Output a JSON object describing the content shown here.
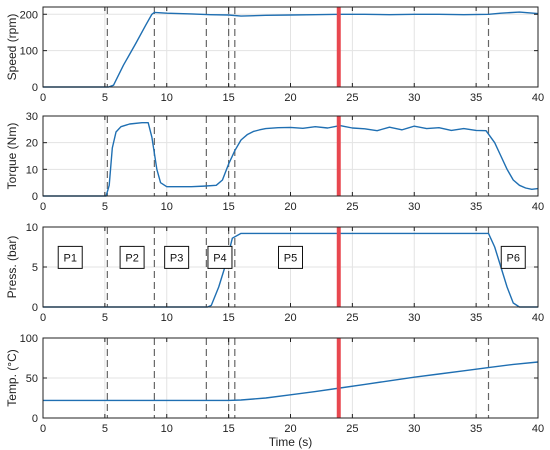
{
  "chart_data": [
    {
      "type": "line",
      "ylabel": "Speed (rpm)",
      "xlim": [
        0,
        40
      ],
      "ylim": [
        0,
        220
      ],
      "yticks": [
        0,
        100,
        200
      ],
      "xticks": [
        0,
        5,
        10,
        15,
        20,
        25,
        30,
        35,
        40
      ],
      "grid": true,
      "series": [
        {
          "x": [
            0,
            5.3,
            5.7,
            6.5,
            7.5,
            8.3,
            8.8,
            9.0,
            9.5,
            10,
            12,
            13.5,
            15,
            16,
            18,
            20,
            22,
            24,
            26,
            28,
            30,
            32,
            34,
            36,
            37,
            38.5,
            40
          ],
          "y": [
            0,
            0,
            5,
            60,
            120,
            170,
            200,
            205,
            204,
            203,
            201,
            199,
            198,
            195,
            197,
            198,
            199,
            200,
            200,
            199,
            200,
            200,
            199,
            200,
            203,
            206,
            202
          ]
        }
      ]
    },
    {
      "type": "line",
      "ylabel": "Torque (Nm)",
      "xlim": [
        0,
        40
      ],
      "ylim": [
        0,
        30
      ],
      "yticks": [
        0,
        10,
        20,
        30
      ],
      "xticks": [
        0,
        5,
        10,
        15,
        20,
        25,
        30,
        35,
        40
      ],
      "grid": true,
      "series": [
        {
          "x": [
            0,
            5.1,
            5.35,
            5.6,
            5.9,
            6.3,
            7,
            8,
            8.5,
            8.8,
            9.2,
            9.5,
            10,
            11,
            12,
            13,
            14,
            14.5,
            15,
            15.5,
            16,
            16.5,
            17,
            17.5,
            18,
            19,
            20,
            21,
            22,
            23,
            24,
            25,
            26,
            27,
            28,
            29,
            30,
            31,
            32,
            33,
            34,
            35,
            35.8,
            36.5,
            37,
            37.5,
            38,
            38.5,
            39,
            39.5,
            40
          ],
          "y": [
            0,
            0,
            4,
            18,
            24,
            26,
            27,
            27.5,
            27.5,
            22,
            10,
            5,
            3.5,
            3.5,
            3.5,
            3.7,
            4,
            6,
            12,
            17,
            21,
            23,
            24.2,
            24.8,
            25.3,
            25.6,
            25.7,
            25.4,
            26,
            25.5,
            26.4,
            25.5,
            25.2,
            24.5,
            25.8,
            24.8,
            26.2,
            25.3,
            25.6,
            24.6,
            25.3,
            24.6,
            24.5,
            20,
            15,
            10,
            6,
            4,
            3,
            2.5,
            2.8
          ]
        }
      ]
    },
    {
      "type": "line",
      "ylabel": "Press. (bar)",
      "xlim": [
        0,
        40
      ],
      "ylim": [
        0,
        10
      ],
      "yticks": [
        0,
        5,
        10
      ],
      "xticks": [
        0,
        5,
        10,
        15,
        20,
        25,
        30,
        35,
        40
      ],
      "grid": true,
      "phase_labels": [
        {
          "text": "P1",
          "x": 2.2,
          "y": 6.2
        },
        {
          "text": "P2",
          "x": 7.2,
          "y": 6.2
        },
        {
          "text": "P3",
          "x": 10.8,
          "y": 6.2
        },
        {
          "text": "P4",
          "x": 14.3,
          "y": 6.2
        },
        {
          "text": "P5",
          "x": 20.0,
          "y": 6.2
        },
        {
          "text": "P6",
          "x": 38.0,
          "y": 6.2
        }
      ],
      "series": [
        {
          "x": [
            0,
            13.3,
            13.6,
            14.2,
            14.8,
            15.3,
            16,
            20,
            25,
            30,
            35,
            36,
            36.5,
            37,
            37.5,
            38,
            38.5,
            40
          ],
          "y": [
            0,
            0,
            0.2,
            2.5,
            5.5,
            8.6,
            9.2,
            9.2,
            9.2,
            9.2,
            9.2,
            9.2,
            7.5,
            5,
            2.5,
            0.5,
            0,
            0
          ]
        }
      ]
    },
    {
      "type": "line",
      "ylabel": "Temp. (°C)",
      "xlabel": "Time (s)",
      "xlim": [
        0,
        40
      ],
      "ylim": [
        0,
        100
      ],
      "yticks": [
        0,
        50,
        100
      ],
      "xticks": [
        0,
        5,
        10,
        15,
        20,
        25,
        30,
        35,
        40
      ],
      "grid": true,
      "series": [
        {
          "x": [
            0,
            5,
            10,
            15,
            16,
            18,
            20,
            22,
            24,
            26,
            28,
            30,
            32,
            34,
            36,
            38,
            40
          ],
          "y": [
            22,
            22,
            22,
            22,
            22.5,
            25,
            29,
            33,
            37.5,
            42,
            46.5,
            51,
            55,
            59,
            63,
            67,
            70
          ]
        }
      ]
    }
  ],
  "markers": {
    "phase_lines_x": [
      5.2,
      9.0,
      13.2,
      15.0,
      15.5,
      36.0
    ],
    "current_time_x": 23.9,
    "line_color": "#1f6fb2",
    "marker_color": "#e8474f",
    "dash_color": "#666666"
  }
}
